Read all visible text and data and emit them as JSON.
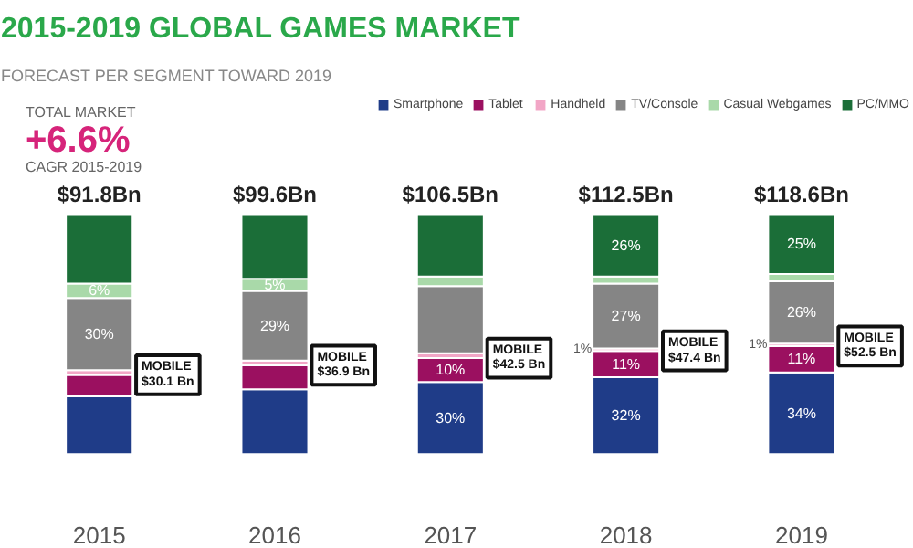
{
  "chart_data": {
    "type": "bar",
    "title": "2015-2019 GLOBAL GAMES MARKET",
    "subtitle": "FORECAST PER SEGMENT TOWARD 2019",
    "stacked": true,
    "legend": "top right",
    "categories": [
      "2015",
      "2016",
      "2017",
      "2018",
      "2019"
    ],
    "series": [
      {
        "name": "Smartphone",
        "color": "#1f3c88",
        "values": [
          24,
          27,
          30,
          32,
          34
        ],
        "value_labels": [
          null,
          null,
          "30%",
          "32%",
          "34%"
        ]
      },
      {
        "name": "Tablet",
        "color": "#9b1060",
        "values": [
          9,
          10,
          10,
          11,
          11
        ],
        "value_labels": [
          null,
          null,
          "10%",
          "11%",
          "11%"
        ]
      },
      {
        "name": "Handheld",
        "color": "#f2a6c6",
        "values": [
          2,
          2,
          2,
          1,
          1
        ],
        "value_labels": [
          null,
          null,
          null,
          "1%",
          "1%"
        ]
      },
      {
        "name": "TV/Console",
        "color": "#858585",
        "values": [
          30,
          29,
          28,
          27,
          26
        ],
        "value_labels": [
          "30%",
          "29%",
          null,
          "27%",
          "26%"
        ]
      },
      {
        "name": "Casual Webgames",
        "color": "#a9d9a9",
        "values": [
          6,
          5,
          4,
          3,
          3
        ],
        "value_labels": [
          "6%",
          "5%",
          null,
          null,
          null
        ]
      },
      {
        "name": "PC/MMO",
        "color": "#1b6e38",
        "values": [
          29,
          27,
          26,
          26,
          25
        ],
        "value_labels": [
          null,
          null,
          null,
          "26%",
          "25%"
        ]
      }
    ],
    "annotations": [
      "TOTAL MARKET",
      "+6.6%",
      "CAGR 2015-2019",
      "MOBILE $30.1 Bn",
      "MOBILE $36.9 Bn",
      "MOBILE $42.5 Bn",
      "MOBILE $47.4 Bn",
      "MOBILE $52.5 Bn",
      {
        "text": "$91.8Bn",
        "x": "2015",
        "y": 100
      },
      {
        "text": "$99.6Bn",
        "x": "2016",
        "y": 100
      },
      {
        "text": "$106.5Bn",
        "x": "2017",
        "y": 100
      },
      {
        "text": "$112.5Bn",
        "x": "2018",
        "y": 100
      },
      {
        "text": "$118.6Bn",
        "x": "2019",
        "y": 100
      }
    ]
  }
}
